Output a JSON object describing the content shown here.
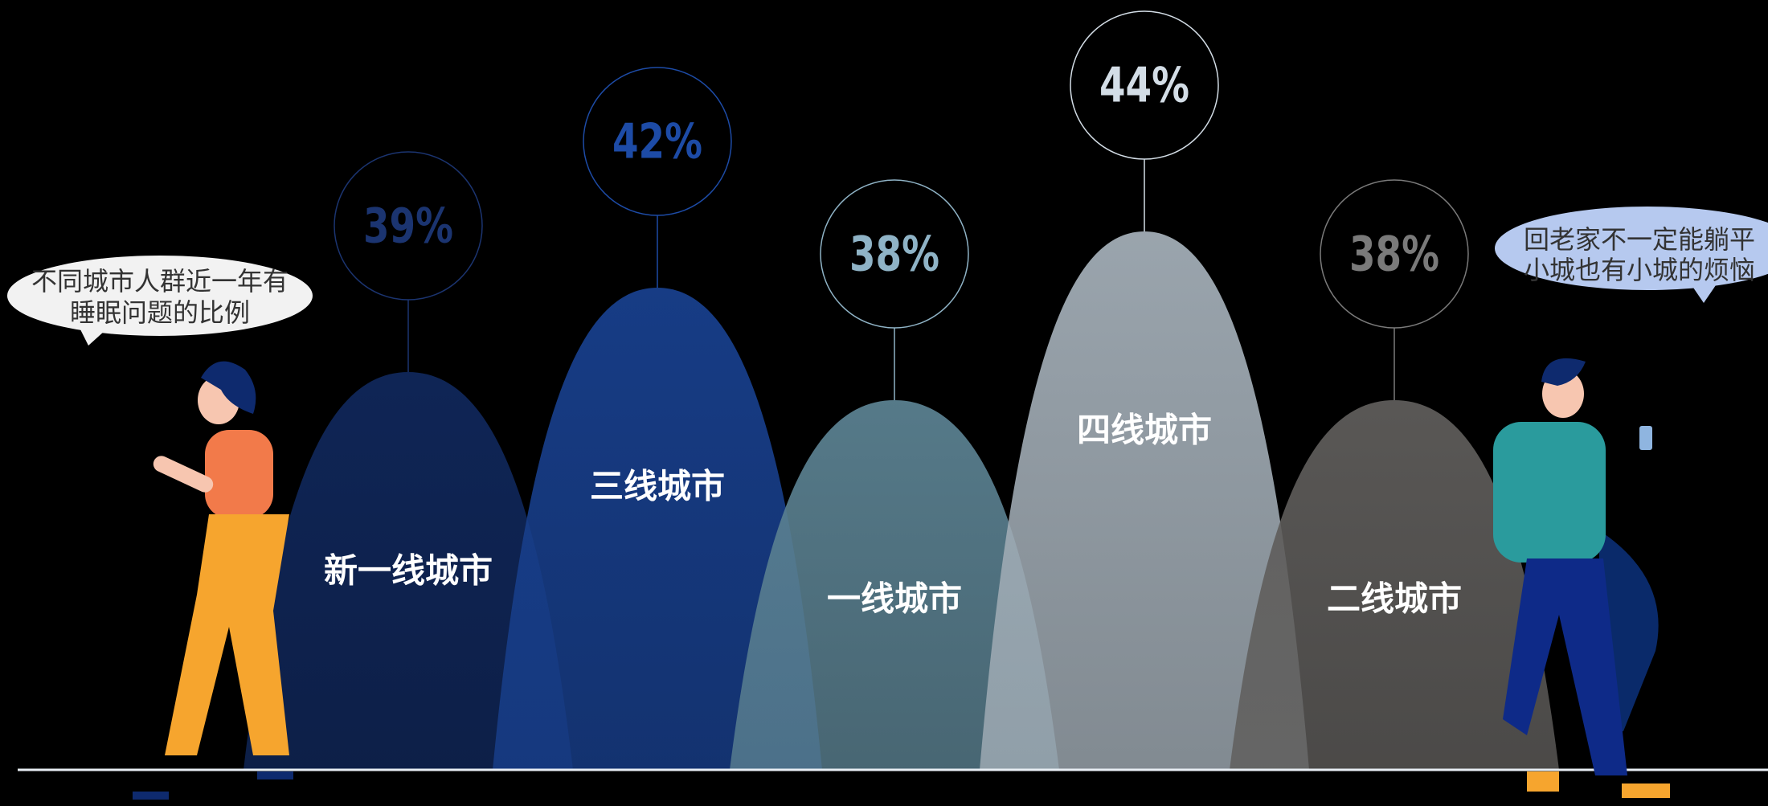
{
  "chart_data": {
    "type": "mountain",
    "categories": [
      "新一线城市",
      "三线城市",
      "一线城市",
      "四线城市",
      "二线城市"
    ],
    "values": [
      39,
      42,
      38,
      44,
      38
    ],
    "value_labels": [
      "39%",
      "42%",
      "38%",
      "44%",
      "38%"
    ],
    "colors": [
      "#10275a",
      "#183f8c",
      "#5a8090",
      "#a2adb6",
      "#5e5c5a"
    ],
    "label_colors": [
      "#1b3470",
      "#1d4ba6",
      "#8fb3c6",
      "#d3dde6",
      "#7a7a7a"
    ],
    "annotations": [
      {
        "lines": [
          "不同城市人群近一年有",
          "睡眠问题的比例"
        ]
      },
      {
        "lines": [
          "回老家不一定能躺平",
          "小城也有小城的烦恼"
        ]
      }
    ]
  }
}
